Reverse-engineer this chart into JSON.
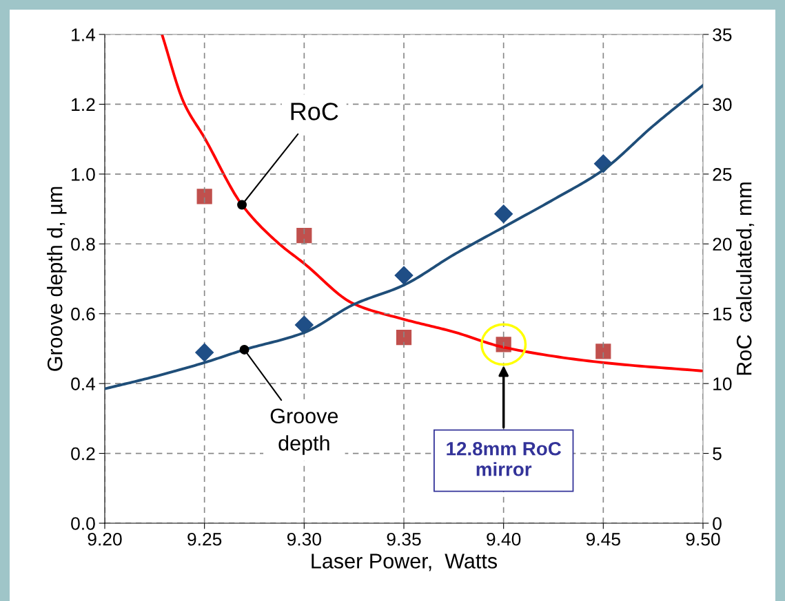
{
  "chart_data": {
    "type": "scatter",
    "xlabel": "Laser Power,  Watts",
    "ylabel": "Groove depth d, µm",
    "y2label": "RoC  calculated, mm",
    "xlim": [
      9.2,
      9.5
    ],
    "xticks": [
      {
        "value": 9.2,
        "label": "9.20"
      },
      {
        "value": 9.25,
        "label": "9.25"
      },
      {
        "value": 9.3,
        "label": "9.30"
      },
      {
        "value": 9.35,
        "label": "9.35"
      },
      {
        "value": 9.4,
        "label": "9.40"
      },
      {
        "value": 9.45,
        "label": "9.45"
      },
      {
        "value": 9.5,
        "label": "9.50"
      }
    ],
    "ylim": [
      0,
      1.4
    ],
    "yticks": [
      {
        "value": 0,
        "label": "0.0"
      },
      {
        "value": 0.2,
        "label": "0.2"
      },
      {
        "value": 0.4,
        "label": "0.4"
      },
      {
        "value": 0.6,
        "label": "0.6"
      },
      {
        "value": 0.8,
        "label": "0.8"
      },
      {
        "value": 1.0,
        "label": "1.0"
      },
      {
        "value": 1.2,
        "label": "1.2"
      },
      {
        "value": 1.4,
        "label": "1.4"
      }
    ],
    "y2lim": [
      0,
      35
    ],
    "y2ticks": [
      0,
      5,
      10,
      15,
      20,
      25,
      30,
      35
    ],
    "grid": true,
    "series": [
      {
        "type": "scatter",
        "marker": "diamond",
        "color": "#1f4e86",
        "x": [
          9.25,
          9.3,
          9.35,
          9.4,
          9.45
        ],
        "values": [
          0.489,
          0.568,
          0.71,
          0.886,
          1.03
        ]
      },
      {
        "type": "scatter",
        "marker": "square",
        "axis": "y2",
        "color": "#c0504d",
        "x": [
          9.25,
          9.3,
          9.35,
          9.4,
          9.45
        ],
        "values": [
          23.4,
          20.6,
          13.3,
          12.8,
          12.3
        ]
      },
      {
        "type": "line",
        "marker": "none",
        "color": "#1f4e79",
        "x": [
          9.2,
          9.225,
          9.25,
          9.27,
          9.3,
          9.325,
          9.35,
          9.375,
          9.4,
          9.425,
          9.45,
          9.475,
          9.5
        ],
        "values": [
          0.385,
          0.42,
          0.46,
          0.497,
          0.546,
          0.627,
          0.682,
          0.769,
          0.848,
          0.927,
          1.012,
          1.138,
          1.254
        ]
      },
      {
        "type": "line",
        "marker": "none",
        "axis": "y2",
        "color": "#ff0000",
        "x": [
          9.2287,
          9.2397,
          9.25,
          9.2688,
          9.2867,
          9.3,
          9.325,
          9.35,
          9.375,
          9.4,
          9.45,
          9.5
        ],
        "values": [
          35,
          30.1,
          27.6,
          22.8,
          20.1,
          18.6,
          15.7,
          14.6,
          13.7,
          12.6,
          11.5,
          10.9
        ]
      }
    ],
    "annotations": [
      {
        "text": "RoC",
        "x": 9.2688,
        "y": 0.912
      },
      {
        "text": "Groove\ndepth",
        "x": 9.27,
        "y": 0.497
      },
      "12.8mm RoC\nmirror"
    ]
  }
}
